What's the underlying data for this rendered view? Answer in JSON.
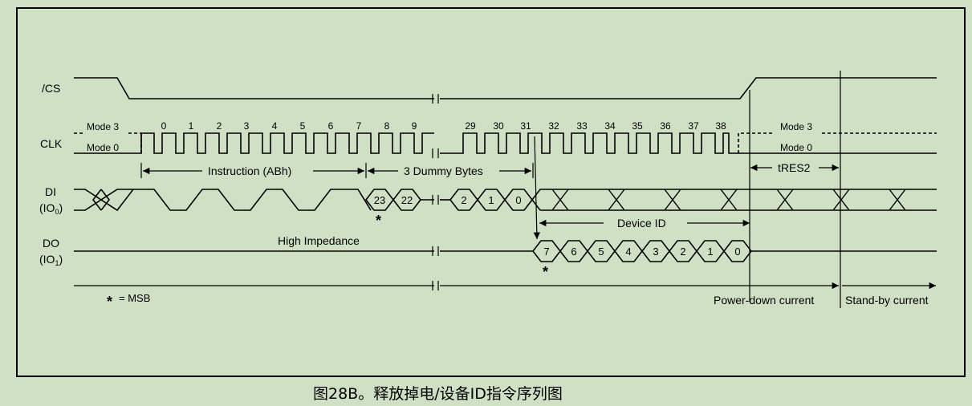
{
  "signals": {
    "cs": "/CS",
    "clk": "CLK",
    "di": "DI",
    "di_io": "IO",
    "di_io_sub": "0",
    "do": "DO",
    "do_io": "IO",
    "do_io_sub": "1"
  },
  "modes": {
    "left_mode3": "Mode 3",
    "left_mode0": "Mode 0",
    "right_mode3": "Mode 3",
    "right_mode0": "Mode 0"
  },
  "clock_numbers_left": [
    "0",
    "1",
    "2",
    "3",
    "4",
    "5",
    "6",
    "7",
    "8",
    "9"
  ],
  "clock_numbers_right": [
    "29",
    "30",
    "31",
    "32",
    "33",
    "34",
    "35",
    "36",
    "37",
    "38"
  ],
  "labels": {
    "instruction": "Instruction (ABh)",
    "dummy": "3 Dummy Bytes",
    "tres2": "tRES2",
    "device_id": "Device ID",
    "high_impedance": "High Impedance",
    "msb_note": "= MSB",
    "power_down": "Power-down current",
    "standby": "Stand-by current"
  },
  "di_bits_left": [
    "23",
    "22"
  ],
  "di_bits_right": [
    "2",
    "1",
    "0"
  ],
  "do_bits": [
    "7",
    "6",
    "5",
    "4",
    "3",
    "2",
    "1",
    "0"
  ],
  "caption": "图28B。释放掉电/设备ID指令序列图"
}
